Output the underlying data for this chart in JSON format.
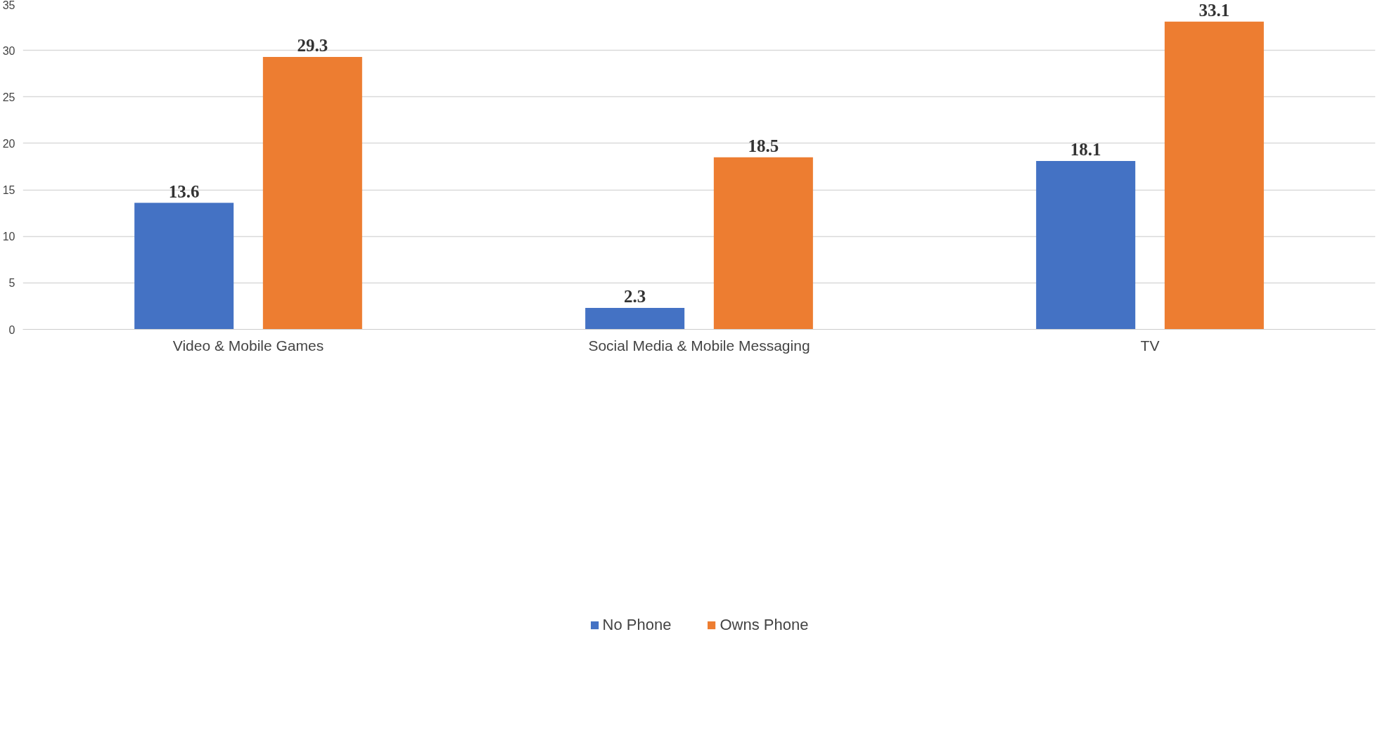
{
  "chart_data": {
    "type": "bar",
    "categories": [
      "Video & Mobile Games",
      "Social Media & Mobile Messaging",
      "TV"
    ],
    "series": [
      {
        "name": "No Phone",
        "color": "#4472c4",
        "values": [
          13.6,
          2.3,
          18.1
        ]
      },
      {
        "name": "Owns Phone",
        "color": "#ed7d31",
        "values": [
          29.3,
          18.5,
          33.1
        ]
      }
    ],
    "ylim": [
      0,
      35
    ],
    "yticks": [
      0,
      5,
      10,
      15,
      20,
      25,
      30,
      35
    ],
    "grid": "y",
    "legend": "bottom",
    "data_labels": true
  }
}
